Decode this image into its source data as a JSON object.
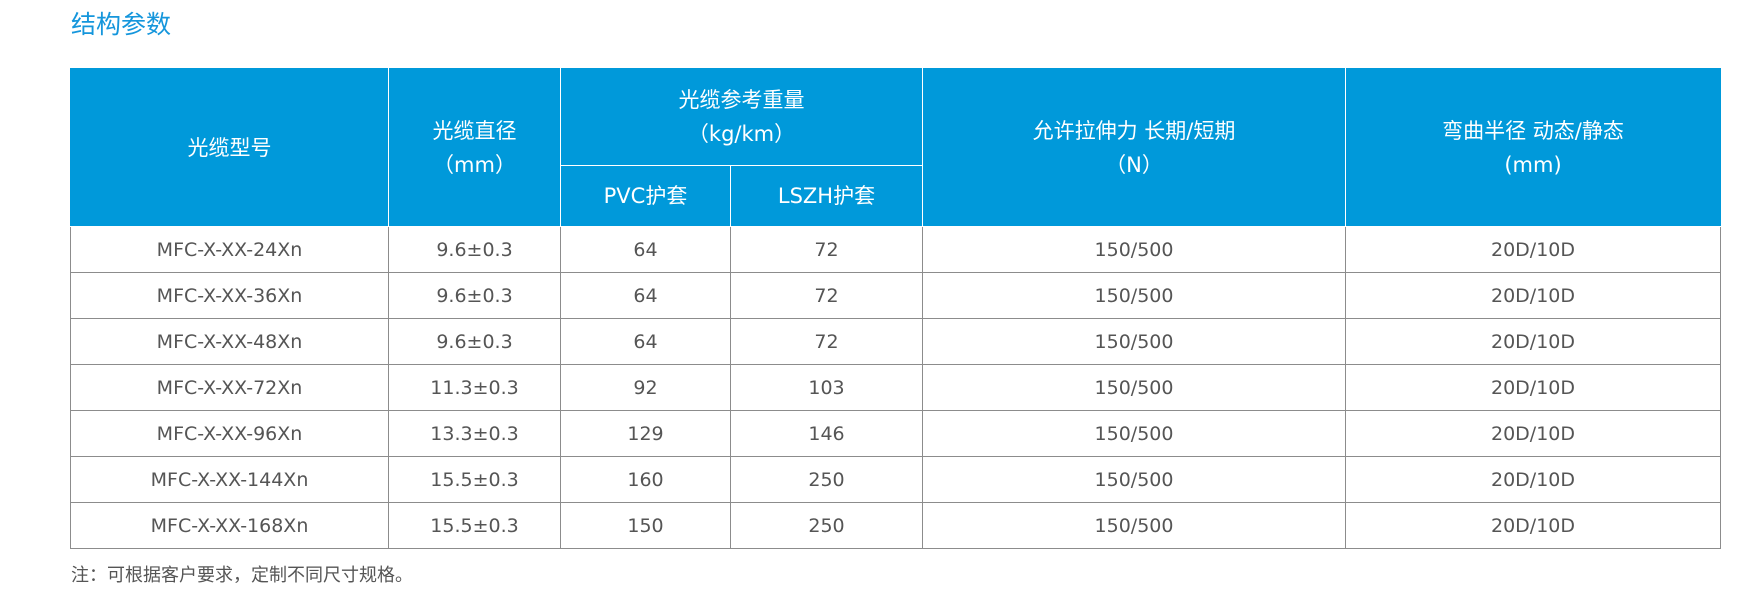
{
  "title": "结构参数",
  "table": {
    "headers": {
      "model": "光缆型号",
      "diameter_l1": "光缆直径",
      "diameter_l2": "（mm）",
      "weight_l1": "光缆参考重量",
      "weight_l2": "（kg/km）",
      "weight_pvc": "PVC护套",
      "weight_lszh": "LSZH护套",
      "tensile_l1": "允许拉伸力 长期/短期",
      "tensile_l2": "（N）",
      "bend_l1": "弯曲半径 动态/静态",
      "bend_l2": "(mm)"
    },
    "rows": [
      {
        "model": "MFC-X-XX-24Xn",
        "diameter": "9.6±0.3",
        "pvc": "64",
        "lszh": "72",
        "tensile": "150/500",
        "bend": "20D/10D"
      },
      {
        "model": "MFC-X-XX-36Xn",
        "diameter": "9.6±0.3",
        "pvc": "64",
        "lszh": "72",
        "tensile": "150/500",
        "bend": "20D/10D"
      },
      {
        "model": "MFC-X-XX-48Xn",
        "diameter": "9.6±0.3",
        "pvc": "64",
        "lszh": "72",
        "tensile": "150/500",
        "bend": "20D/10D"
      },
      {
        "model": "MFC-X-XX-72Xn",
        "diameter": "11.3±0.3",
        "pvc": "92",
        "lszh": "103",
        "tensile": "150/500",
        "bend": "20D/10D"
      },
      {
        "model": "MFC-X-XX-96Xn",
        "diameter": "13.3±0.3",
        "pvc": "129",
        "lszh": "146",
        "tensile": "150/500",
        "bend": "20D/10D"
      },
      {
        "model": "MFC-X-XX-144Xn",
        "diameter": "15.5±0.3",
        "pvc": "160",
        "lszh": "250",
        "tensile": "150/500",
        "bend": "20D/10D"
      },
      {
        "model": "MFC-X-XX-168Xn",
        "diameter": "15.5±0.3",
        "pvc": "150",
        "lszh": "250",
        "tensile": "150/500",
        "bend": "20D/10D"
      }
    ]
  },
  "note": "注：可根据客户要求，定制不同尺寸规格。",
  "colors": {
    "header_bg": "#0099da",
    "title": "#1596dc",
    "text": "#555555",
    "border": "#8c8c8c"
  }
}
